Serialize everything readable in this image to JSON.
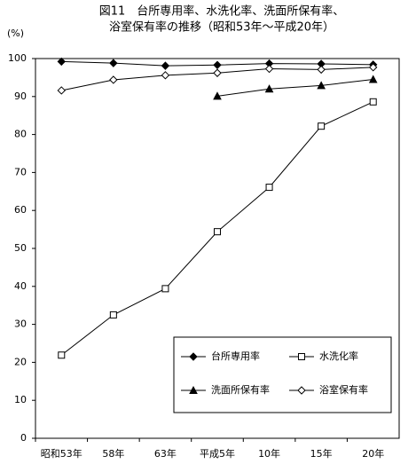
{
  "chart_data": {
    "type": "line",
    "title": [
      "図11　台所専用率、水洗化率、洗面所保有率、",
      "浴室保有率の推移（昭和53年～平成20年）"
    ],
    "y_label": "(%)",
    "categories": [
      "昭和53年",
      "58年",
      "63年",
      "平成5年",
      "10年",
      "15年",
      "20年"
    ],
    "series": [
      {
        "name": "台所専用率",
        "color": "#000000",
        "marker": "diamond-filled",
        "values": [
          99.2,
          98.8,
          98.1,
          98.3,
          98.7,
          98.6,
          98.4
        ]
      },
      {
        "name": "水洗化率",
        "color": "#000000",
        "marker": "square-open",
        "values": [
          21.9,
          32.5,
          39.4,
          54.4,
          66.1,
          82.2,
          88.6
        ]
      },
      {
        "name": "洗面所保有率",
        "color": "#000000",
        "marker": "triangle-filled",
        "values": [
          null,
          null,
          null,
          90.1,
          92.0,
          92.9,
          94.5
        ]
      },
      {
        "name": "浴室保有率",
        "color": "#000000",
        "marker": "diamond-open",
        "values": [
          91.6,
          94.4,
          95.6,
          96.2,
          97.3,
          97.1,
          97.7
        ]
      }
    ],
    "ylim": [
      0,
      100
    ],
    "yticks": [
      0,
      10,
      20,
      30,
      40,
      50,
      60,
      70,
      80,
      90,
      100
    ],
    "grid": false,
    "legend": "lower-right"
  }
}
